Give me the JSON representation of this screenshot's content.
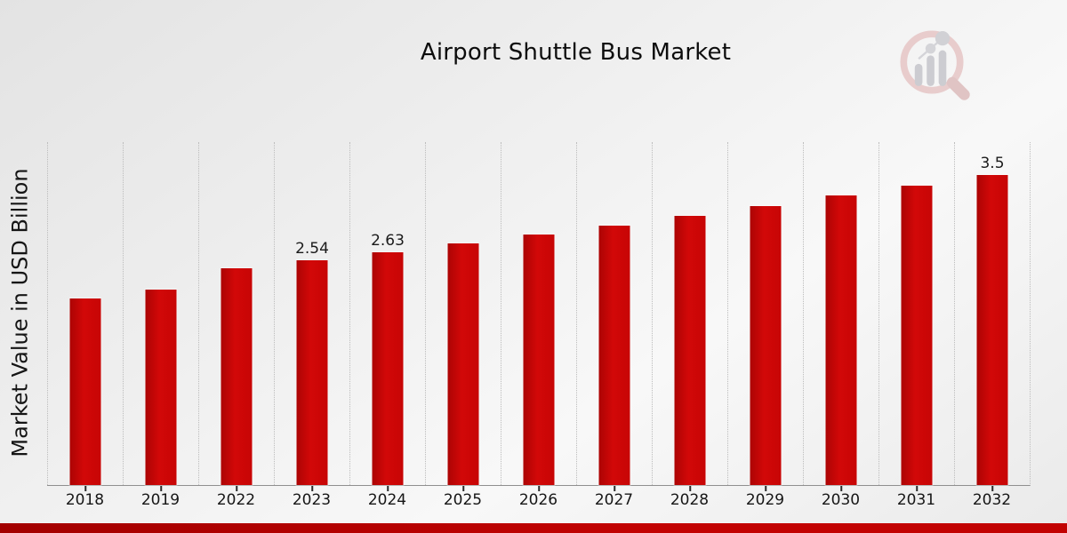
{
  "header": {
    "title": "Airport Shuttle Bus Market"
  },
  "colors": {
    "bar": "#d20808",
    "bar_dark": "#ac0404",
    "bar_mid": "#c70505",
    "grid": "#bcbcbc",
    "axis": "#8f8f8f",
    "band_left": "#a30000",
    "band_right": "#c20202"
  },
  "watermark": {
    "name": "market-research-magnifier-logo"
  },
  "chart_data": {
    "type": "bar",
    "title": "Airport Shuttle Bus Market",
    "ylabel": "Market Value in USD Billion",
    "xlabel": "",
    "categories": [
      "2018",
      "2019",
      "2022",
      "2023",
      "2024",
      "2025",
      "2026",
      "2027",
      "2028",
      "2029",
      "2030",
      "2031",
      "2032"
    ],
    "values": [
      2.11,
      2.21,
      2.45,
      2.54,
      2.63,
      2.73,
      2.83,
      2.93,
      3.04,
      3.15,
      3.27,
      3.38,
      3.5
    ],
    "point_labels": [
      "",
      "",
      "",
      "2.54",
      "2.63",
      "",
      "",
      "",
      "",
      "",
      "",
      "",
      "3.5"
    ],
    "ylim": [
      0,
      3.87
    ],
    "grid": "vertical-dotted-between-categories",
    "legend": "none",
    "bar_color": "#d20808"
  }
}
